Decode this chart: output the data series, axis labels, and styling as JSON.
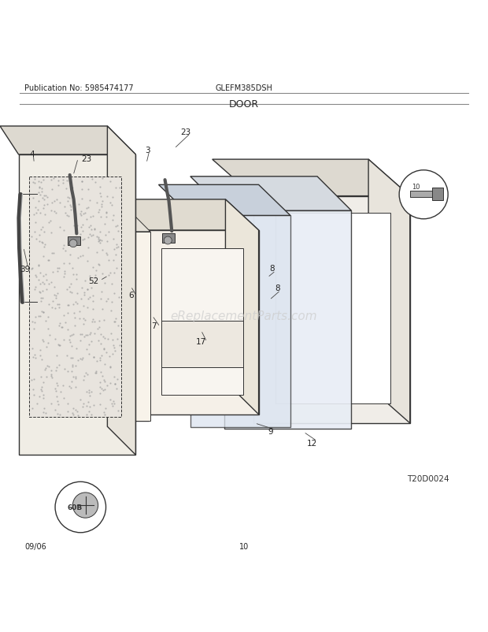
{
  "title": "DOOR",
  "pub_no": "Publication No: 5985474177",
  "model": "GLEFM385DSH",
  "ref_no": "T20D0024",
  "date": "09/06",
  "page": "10",
  "watermark": "eReplacementParts.com",
  "bg_color": "#ffffff",
  "line_color": "#333333"
}
